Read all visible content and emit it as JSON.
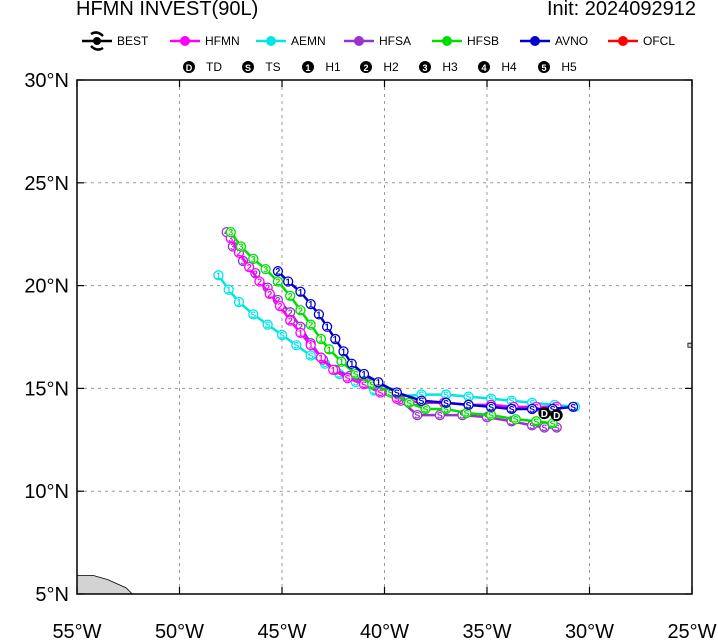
{
  "title_left": "HFMN INVEST(90L)",
  "title_right": "Init: 2024092912",
  "colors": {
    "BEST": "#000000",
    "HFMN": "#ff00ff",
    "AEMN": "#00e6e6",
    "HFSA": "#9933cc",
    "HFSB": "#00dd00",
    "AVNO": "#0000cc",
    "OFCL": "#ff0000",
    "land": "#d3d3d3",
    "grid": "#999999"
  },
  "chart_data": {
    "type": "line",
    "title": "HFMN INVEST(90L)",
    "x_axis": {
      "range": [
        -55,
        -25
      ],
      "ticks": [
        -55,
        -50,
        -45,
        -40,
        -35,
        -30,
        -25
      ],
      "tick_labels": [
        "55°W",
        "50°W",
        "45°W",
        "40°W",
        "35°W",
        "30°W",
        "25°W"
      ]
    },
    "y_axis": {
      "range": [
        5,
        30
      ],
      "ticks": [
        5,
        10,
        15,
        20,
        25,
        30
      ],
      "tick_labels": [
        "5°N",
        "10°N",
        "15°N",
        "20°N",
        "25°N",
        "30°N"
      ]
    },
    "grid": true,
    "legend_models": [
      "BEST",
      "HFMN",
      "AEMN",
      "HFSA",
      "HFSB",
      "AVNO",
      "OFCL"
    ],
    "legend_intensity": [
      {
        "symbol": "D",
        "label": "TD"
      },
      {
        "symbol": "S",
        "label": "TS"
      },
      {
        "symbol": "1",
        "label": "H1"
      },
      {
        "symbol": "2",
        "label": "H2"
      },
      {
        "symbol": "3",
        "label": "H3"
      },
      {
        "symbol": "4",
        "label": "H4"
      },
      {
        "symbol": "5",
        "label": "H5"
      }
    ],
    "series": [
      {
        "name": "AEMN",
        "points": [
          [
            -30.7,
            14.1
          ],
          [
            -31.7,
            14.2
          ],
          [
            -32.8,
            14.3
          ],
          [
            -33.8,
            14.4
          ],
          [
            -34.8,
            14.5
          ],
          [
            -35.9,
            14.6
          ],
          [
            -37.0,
            14.7
          ],
          [
            -38.2,
            14.7
          ],
          [
            -39.4,
            14.6
          ],
          [
            -40.5,
            14.9
          ],
          [
            -41.4,
            15.3
          ],
          [
            -42.2,
            15.7
          ],
          [
            -42.9,
            16.2
          ],
          [
            -43.6,
            16.6
          ],
          [
            -44.3,
            17.1
          ],
          [
            -45.0,
            17.6
          ],
          [
            -45.7,
            18.1
          ],
          [
            -46.4,
            18.6
          ],
          [
            -47.1,
            19.2
          ],
          [
            -47.6,
            19.8
          ],
          [
            -48.1,
            20.5
          ]
        ],
        "labels": [
          "S",
          "S",
          "S",
          "S",
          "S",
          "S",
          "S",
          "S",
          "S",
          "S",
          "S",
          "S",
          "S",
          "S",
          "S",
          "S",
          "S",
          "S",
          "1",
          "1",
          "1"
        ]
      },
      {
        "name": "HFSA",
        "points": [
          [
            -31.6,
            13.1
          ],
          [
            -32.2,
            13.1
          ],
          [
            -32.8,
            13.2
          ],
          [
            -33.8,
            13.4
          ],
          [
            -35.0,
            13.6
          ],
          [
            -36.2,
            13.7
          ],
          [
            -37.3,
            13.7
          ],
          [
            -38.4,
            13.7
          ],
          [
            -39.2,
            14.4
          ],
          [
            -40.0,
            14.9
          ],
          [
            -40.9,
            15.3
          ],
          [
            -41.7,
            15.6
          ],
          [
            -42.4,
            15.9
          ],
          [
            -43.0,
            16.4
          ],
          [
            -43.6,
            17.2
          ],
          [
            -44.1,
            18.0
          ],
          [
            -44.6,
            18.7
          ],
          [
            -45.2,
            19.3
          ],
          [
            -45.7,
            19.9
          ],
          [
            -46.3,
            20.6
          ],
          [
            -46.9,
            21.2
          ],
          [
            -47.4,
            21.9
          ],
          [
            -47.7,
            22.6
          ]
        ],
        "labels": [
          "S",
          "S",
          "S",
          "S",
          "S",
          "S",
          "S",
          "S",
          "S",
          "S",
          "S",
          "S",
          "1",
          "1",
          "2",
          "2",
          "2",
          "2",
          "2",
          "2",
          "3",
          "3",
          "4"
        ]
      },
      {
        "name": "HFMN",
        "points": [
          [
            -31.6,
            14.1
          ],
          [
            -32.6,
            14.1
          ],
          [
            -33.7,
            14.1
          ],
          [
            -34.8,
            14.2
          ],
          [
            -35.9,
            14.2
          ],
          [
            -37.1,
            14.3
          ],
          [
            -38.2,
            14.3
          ],
          [
            -39.4,
            14.5
          ],
          [
            -40.2,
            14.8
          ],
          [
            -41.0,
            15.2
          ],
          [
            -41.8,
            15.5
          ],
          [
            -42.5,
            15.9
          ],
          [
            -43.1,
            16.5
          ],
          [
            -43.6,
            17.1
          ],
          [
            -44.1,
            17.7
          ],
          [
            -44.6,
            18.3
          ],
          [
            -45.1,
            19.0
          ],
          [
            -45.6,
            19.6
          ],
          [
            -46.1,
            20.2
          ],
          [
            -46.6,
            20.9
          ],
          [
            -47.1,
            21.6
          ],
          [
            -47.5,
            22.3
          ]
        ],
        "labels": [
          "S",
          "S",
          "S",
          "S",
          "S",
          "S",
          "S",
          "S",
          "S",
          "S",
          "S",
          "1",
          "1",
          "1",
          "1",
          "2",
          "2",
          "2",
          "2",
          "2",
          "2",
          "3"
        ]
      },
      {
        "name": "HFSB",
        "points": [
          [
            -31.8,
            13.3
          ],
          [
            -32.6,
            13.4
          ],
          [
            -33.6,
            13.5
          ],
          [
            -34.8,
            13.7
          ],
          [
            -36.0,
            13.8
          ],
          [
            -37.0,
            14.0
          ],
          [
            -38.0,
            14.0
          ],
          [
            -38.8,
            14.3
          ],
          [
            -39.7,
            14.8
          ],
          [
            -40.6,
            15.2
          ],
          [
            -41.4,
            15.7
          ],
          [
            -42.1,
            16.3
          ],
          [
            -42.7,
            16.9
          ],
          [
            -43.1,
            17.4
          ],
          [
            -43.6,
            18.1
          ],
          [
            -44.1,
            18.8
          ],
          [
            -44.6,
            19.5
          ],
          [
            -45.2,
            20.2
          ],
          [
            -45.8,
            20.8
          ],
          [
            -46.4,
            21.3
          ],
          [
            -47.0,
            21.9
          ],
          [
            -47.5,
            22.6
          ]
        ],
        "labels": [
          "S",
          "S",
          "S",
          "S",
          "S",
          "S",
          "S",
          "S",
          "S",
          "S",
          "S",
          "1",
          "1",
          "1",
          "2",
          "2",
          "2",
          "2",
          "3",
          "3",
          "3",
          "3"
        ]
      },
      {
        "name": "AVNO",
        "points": [
          [
            -30.8,
            14.1
          ],
          [
            -31.8,
            14.0
          ],
          [
            -32.8,
            14.0
          ],
          [
            -33.8,
            14.0
          ],
          [
            -34.8,
            14.1
          ],
          [
            -35.9,
            14.2
          ],
          [
            -37.0,
            14.3
          ],
          [
            -38.2,
            14.4
          ],
          [
            -39.4,
            14.8
          ],
          [
            -40.3,
            15.3
          ],
          [
            -41.0,
            15.7
          ],
          [
            -41.6,
            16.2
          ],
          [
            -42.0,
            16.8
          ],
          [
            -42.4,
            17.4
          ],
          [
            -42.8,
            18.0
          ],
          [
            -43.2,
            18.6
          ],
          [
            -43.6,
            19.1
          ],
          [
            -44.1,
            19.7
          ],
          [
            -44.7,
            20.2
          ],
          [
            -45.2,
            20.7
          ]
        ],
        "labels": [
          "S",
          "S",
          "S",
          "S",
          "S",
          "S",
          "S",
          "S",
          "S",
          "1",
          "1",
          "1",
          "1",
          "1",
          "1",
          "1",
          "1",
          "1",
          "1",
          "2"
        ]
      },
      {
        "name": "BEST",
        "points": [
          [
            -31.6,
            13.7
          ],
          [
            -32.2,
            13.8
          ]
        ],
        "labels": [
          "D",
          "D"
        ]
      }
    ],
    "land": {
      "description": "coastline at bottom-left and small island at right edge",
      "bottom_left": [
        [
          -55,
          5
        ],
        [
          -55,
          5.9
        ],
        [
          -54.2,
          5.9
        ],
        [
          -53.5,
          5.7
        ],
        [
          -52.6,
          5.3
        ],
        [
          -52.3,
          5.0
        ]
      ],
      "right_edge_island": [
        [
          -25,
          17.0
        ],
        [
          -25.2,
          17.0
        ],
        [
          -25.2,
          17.2
        ],
        [
          -25,
          17.2
        ]
      ]
    }
  }
}
